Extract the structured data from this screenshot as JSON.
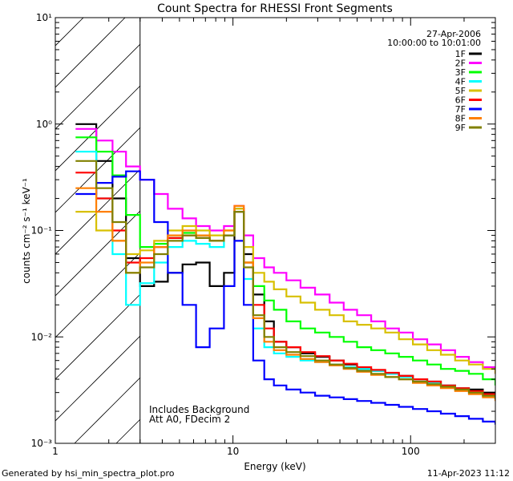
{
  "chart_data": {
    "type": "line",
    "title": "Count Spectra for RHESSI Front Segments",
    "xlabel": "Energy (keV)",
    "ylabel": "counts cm⁻² s⁻¹ keV⁻¹",
    "xscale": "log",
    "yscale": "log",
    "xlim": [
      1,
      300
    ],
    "ylim": [
      0.001,
      10
    ],
    "x_ticks": [
      {
        "value": 1,
        "label": "1"
      },
      {
        "value": 10,
        "label": "10"
      },
      {
        "value": 100,
        "label": "100"
      }
    ],
    "y_ticks": [
      {
        "value": 0.001,
        "label": "10⁻³"
      },
      {
        "value": 0.01,
        "label": "10⁻²"
      },
      {
        "value": 0.1,
        "label": "10⁻¹"
      },
      {
        "value": 1,
        "label": "10⁰"
      },
      {
        "value": 10,
        "label": "10¹"
      }
    ],
    "shaded_region": {
      "from": 1,
      "to": 3
    },
    "date": "27-Apr-2006",
    "time_range": "10:00:00 to 10:01:00",
    "annotations": [
      "Includes Background",
      "Att A0, FDecim 2"
    ],
    "series": [
      {
        "name": "1F",
        "color": "#000000",
        "x": [
          1.3,
          1.7,
          2.1,
          2.5,
          3,
          3.6,
          4.3,
          5.2,
          6.2,
          7.4,
          8.9,
          10.2,
          11.5,
          13,
          15,
          17,
          20,
          24,
          29,
          35,
          42,
          50,
          60,
          72,
          86,
          103,
          124,
          148,
          178,
          213,
          255,
          300
        ],
        "y": [
          1.0,
          0.45,
          0.2,
          0.055,
          0.03,
          0.033,
          0.04,
          0.048,
          0.05,
          0.03,
          0.04,
          0.16,
          0.06,
          0.025,
          0.014,
          0.009,
          0.008,
          0.007,
          0.0065,
          0.006,
          0.0055,
          0.005,
          0.0048,
          0.0045,
          0.0043,
          0.004,
          0.0038,
          0.0035,
          0.0033,
          0.0032,
          0.003,
          0.0028
        ]
      },
      {
        "name": "2F",
        "color": "#ff00ff",
        "x": [
          1.3,
          1.7,
          2.1,
          2.5,
          3,
          3.6,
          4.3,
          5.2,
          6.2,
          7.4,
          8.9,
          10.2,
          11.5,
          13,
          15,
          17,
          20,
          24,
          29,
          35,
          42,
          50,
          60,
          72,
          86,
          103,
          124,
          148,
          178,
          213,
          255,
          300
        ],
        "y": [
          0.9,
          0.7,
          0.55,
          0.4,
          0.3,
          0.22,
          0.16,
          0.13,
          0.11,
          0.1,
          0.11,
          0.17,
          0.09,
          0.055,
          0.045,
          0.04,
          0.034,
          0.029,
          0.025,
          0.021,
          0.018,
          0.016,
          0.014,
          0.012,
          0.011,
          0.0095,
          0.0085,
          0.0075,
          0.0065,
          0.0058,
          0.0052,
          0.0045
        ]
      },
      {
        "name": "3F",
        "color": "#00ff00",
        "x": [
          1.3,
          1.7,
          2.1,
          2.5,
          3,
          3.6,
          4.3,
          5.2,
          6.2,
          7.4,
          8.9,
          10.2,
          11.5,
          13,
          15,
          17,
          20,
          24,
          29,
          35,
          42,
          50,
          60,
          72,
          86,
          103,
          124,
          148,
          178,
          213,
          255,
          300
        ],
        "y": [
          0.75,
          0.55,
          0.33,
          0.14,
          0.07,
          0.075,
          0.085,
          0.095,
          0.09,
          0.08,
          0.09,
          0.15,
          0.05,
          0.03,
          0.022,
          0.018,
          0.014,
          0.012,
          0.011,
          0.01,
          0.009,
          0.008,
          0.0075,
          0.007,
          0.0065,
          0.006,
          0.0055,
          0.005,
          0.0048,
          0.0045,
          0.004,
          0.0035
        ]
      },
      {
        "name": "4F",
        "color": "#00ffff",
        "x": [
          1.3,
          1.7,
          2.1,
          2.5,
          3,
          3.6,
          4.3,
          5.2,
          6.2,
          7.4,
          8.9,
          10.2,
          11.5,
          13,
          15,
          17,
          20,
          24,
          29,
          35,
          42,
          50,
          60,
          72,
          86,
          103,
          124,
          148,
          178,
          213,
          255,
          300
        ],
        "y": [
          0.55,
          0.2,
          0.06,
          0.02,
          0.032,
          0.05,
          0.07,
          0.08,
          0.075,
          0.07,
          0.09,
          0.15,
          0.035,
          0.012,
          0.008,
          0.007,
          0.0065,
          0.006,
          0.0058,
          0.0055,
          0.0052,
          0.005,
          0.0048,
          0.0045,
          0.0042,
          0.004,
          0.0037,
          0.0035,
          0.0033,
          0.003,
          0.0028,
          0.0026
        ]
      },
      {
        "name": "5F",
        "color": "#d8c000",
        "x": [
          1.3,
          1.7,
          2.1,
          2.5,
          3,
          3.6,
          4.3,
          5.2,
          6.2,
          7.4,
          8.9,
          10.2,
          11.5,
          13,
          15,
          17,
          20,
          24,
          29,
          35,
          42,
          50,
          60,
          72,
          86,
          103,
          124,
          148,
          178,
          213,
          255,
          300
        ],
        "y": [
          0.15,
          0.1,
          0.08,
          0.06,
          0.065,
          0.08,
          0.1,
          0.11,
          0.1,
          0.09,
          0.1,
          0.16,
          0.07,
          0.04,
          0.033,
          0.028,
          0.024,
          0.021,
          0.018,
          0.016,
          0.014,
          0.013,
          0.012,
          0.011,
          0.0095,
          0.0085,
          0.0075,
          0.0068,
          0.006,
          0.0055,
          0.005,
          0.0045
        ]
      },
      {
        "name": "6F",
        "color": "#ff0000",
        "x": [
          1.3,
          1.7,
          2.1,
          2.5,
          3,
          3.6,
          4.3,
          5.2,
          6.2,
          7.4,
          8.9,
          10.2,
          11.5,
          13,
          15,
          17,
          20,
          24,
          29,
          35,
          42,
          50,
          60,
          72,
          86,
          103,
          124,
          148,
          178,
          213,
          255,
          300
        ],
        "y": [
          0.35,
          0.2,
          0.1,
          0.05,
          0.055,
          0.07,
          0.085,
          0.09,
          0.085,
          0.08,
          0.09,
          0.15,
          0.05,
          0.02,
          0.012,
          0.009,
          0.008,
          0.0072,
          0.0066,
          0.006,
          0.0056,
          0.0052,
          0.0049,
          0.0046,
          0.0043,
          0.004,
          0.0038,
          0.0035,
          0.0033,
          0.0031,
          0.0029,
          0.0027
        ]
      },
      {
        "name": "7F",
        "color": "#0000ff",
        "x": [
          1.3,
          1.7,
          2.1,
          2.5,
          3,
          3.6,
          4.3,
          5.2,
          6.2,
          7.4,
          8.9,
          10.2,
          11.5,
          13,
          15,
          17,
          20,
          24,
          29,
          35,
          42,
          50,
          60,
          72,
          86,
          103,
          124,
          148,
          178,
          213,
          255,
          300
        ],
        "y": [
          0.22,
          0.28,
          0.32,
          0.36,
          0.3,
          0.12,
          0.04,
          0.02,
          0.008,
          0.012,
          0.03,
          0.08,
          0.02,
          0.006,
          0.004,
          0.0035,
          0.0032,
          0.003,
          0.0028,
          0.0027,
          0.0026,
          0.0025,
          0.0024,
          0.0023,
          0.0022,
          0.0021,
          0.002,
          0.0019,
          0.0018,
          0.0017,
          0.0016,
          0.0015
        ]
      },
      {
        "name": "8F",
        "color": "#ff7f00",
        "x": [
          1.3,
          1.7,
          2.1,
          2.5,
          3,
          3.6,
          4.3,
          5.2,
          6.2,
          7.4,
          8.9,
          10.2,
          11.5,
          13,
          15,
          17,
          20,
          24,
          29,
          35,
          42,
          50,
          60,
          72,
          86,
          103,
          124,
          148,
          178,
          213,
          255,
          300
        ],
        "y": [
          0.25,
          0.15,
          0.08,
          0.04,
          0.05,
          0.07,
          0.09,
          0.1,
          0.09,
          0.08,
          0.1,
          0.17,
          0.05,
          0.015,
          0.009,
          0.0075,
          0.0068,
          0.0062,
          0.0058,
          0.0054,
          0.005,
          0.0047,
          0.0044,
          0.0042,
          0.004,
          0.0037,
          0.0035,
          0.0033,
          0.0031,
          0.0029,
          0.0027,
          0.0025
        ]
      },
      {
        "name": "9F",
        "color": "#808000",
        "x": [
          1.3,
          1.7,
          2.1,
          2.5,
          3,
          3.6,
          4.3,
          5.2,
          6.2,
          7.4,
          8.9,
          10.2,
          11.5,
          13,
          15,
          17,
          20,
          24,
          29,
          35,
          42,
          50,
          60,
          72,
          86,
          103,
          124,
          148,
          178,
          213,
          255,
          300
        ],
        "y": [
          0.45,
          0.25,
          0.12,
          0.04,
          0.045,
          0.06,
          0.08,
          0.09,
          0.085,
          0.08,
          0.09,
          0.15,
          0.045,
          0.016,
          0.01,
          0.008,
          0.0072,
          0.0066,
          0.006,
          0.0055,
          0.0051,
          0.0048,
          0.0045,
          0.0042,
          0.004,
          0.0038,
          0.0036,
          0.0034,
          0.0032,
          0.003,
          0.0028,
          0.0026
        ]
      }
    ]
  },
  "footer": {
    "generated_by": "Generated by hsi_min_spectra_plot.pro",
    "timestamp": "11-Apr-2023 11:12"
  }
}
